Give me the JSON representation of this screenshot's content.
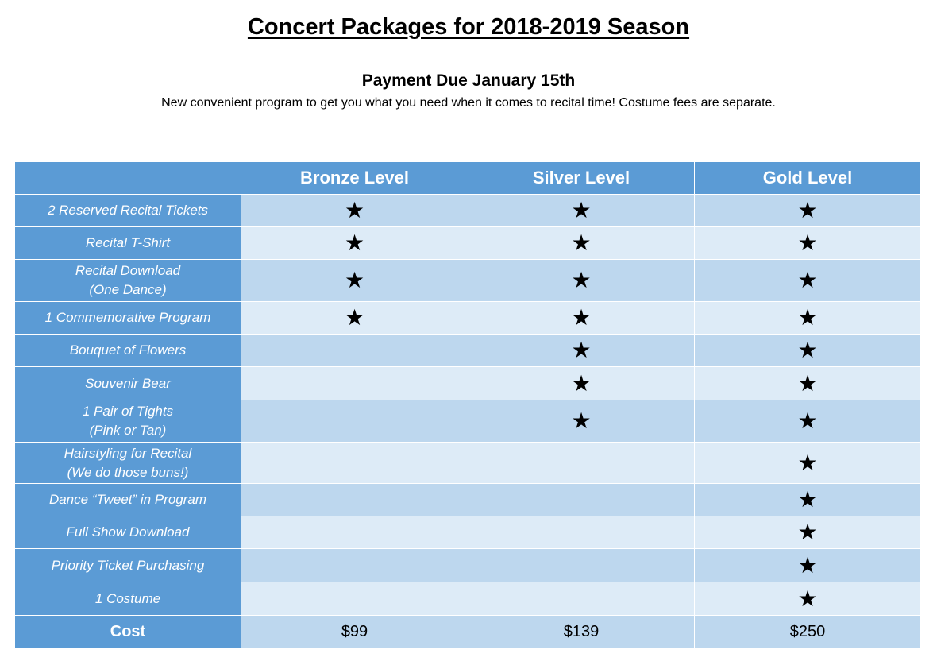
{
  "title": "Concert Packages for 2018-2019 Season",
  "subtitle": "Payment Due January 15th",
  "note": "New convenient program to get you what you need when it comes to recital time! Costume fees are separate.",
  "levels": [
    "Bronze Level",
    "Silver Level",
    "Gold Level"
  ],
  "star_glyph": "★",
  "features": [
    {
      "lines": [
        "2 Reserved Recital Tickets"
      ],
      "bronze": true,
      "silver": true,
      "gold": true
    },
    {
      "lines": [
        "Recital T-Shirt"
      ],
      "bronze": true,
      "silver": true,
      "gold": true
    },
    {
      "lines": [
        "Recital Download",
        "(One Dance)"
      ],
      "bronze": true,
      "silver": true,
      "gold": true
    },
    {
      "lines": [
        "1 Commemorative Program"
      ],
      "bronze": true,
      "silver": true,
      "gold": true
    },
    {
      "lines": [
        "Bouquet of Flowers"
      ],
      "bronze": false,
      "silver": true,
      "gold": true
    },
    {
      "lines": [
        "Souvenir Bear"
      ],
      "bronze": false,
      "silver": true,
      "gold": true
    },
    {
      "lines": [
        "1 Pair of Tights",
        "(Pink or Tan)"
      ],
      "bronze": false,
      "silver": true,
      "gold": true
    },
    {
      "lines": [
        "Hairstyling for Recital",
        "(We do those buns!)"
      ],
      "bronze": false,
      "silver": false,
      "gold": true
    },
    {
      "lines": [
        "Dance “Tweet” in Program"
      ],
      "bronze": false,
      "silver": false,
      "gold": true
    },
    {
      "lines": [
        "Full Show Download"
      ],
      "bronze": false,
      "silver": false,
      "gold": true
    },
    {
      "lines": [
        "Priority Ticket Purchasing"
      ],
      "bronze": false,
      "silver": false,
      "gold": true
    },
    {
      "lines": [
        "1 Costume"
      ],
      "bronze": false,
      "silver": false,
      "gold": true
    }
  ],
  "cost": {
    "label": "Cost",
    "values": [
      "$99",
      "$139",
      "$250"
    ]
  },
  "colors": {
    "header_blue": "#5b9bd5",
    "row_dark": "#bdd7ee",
    "row_light": "#ddebf7"
  }
}
